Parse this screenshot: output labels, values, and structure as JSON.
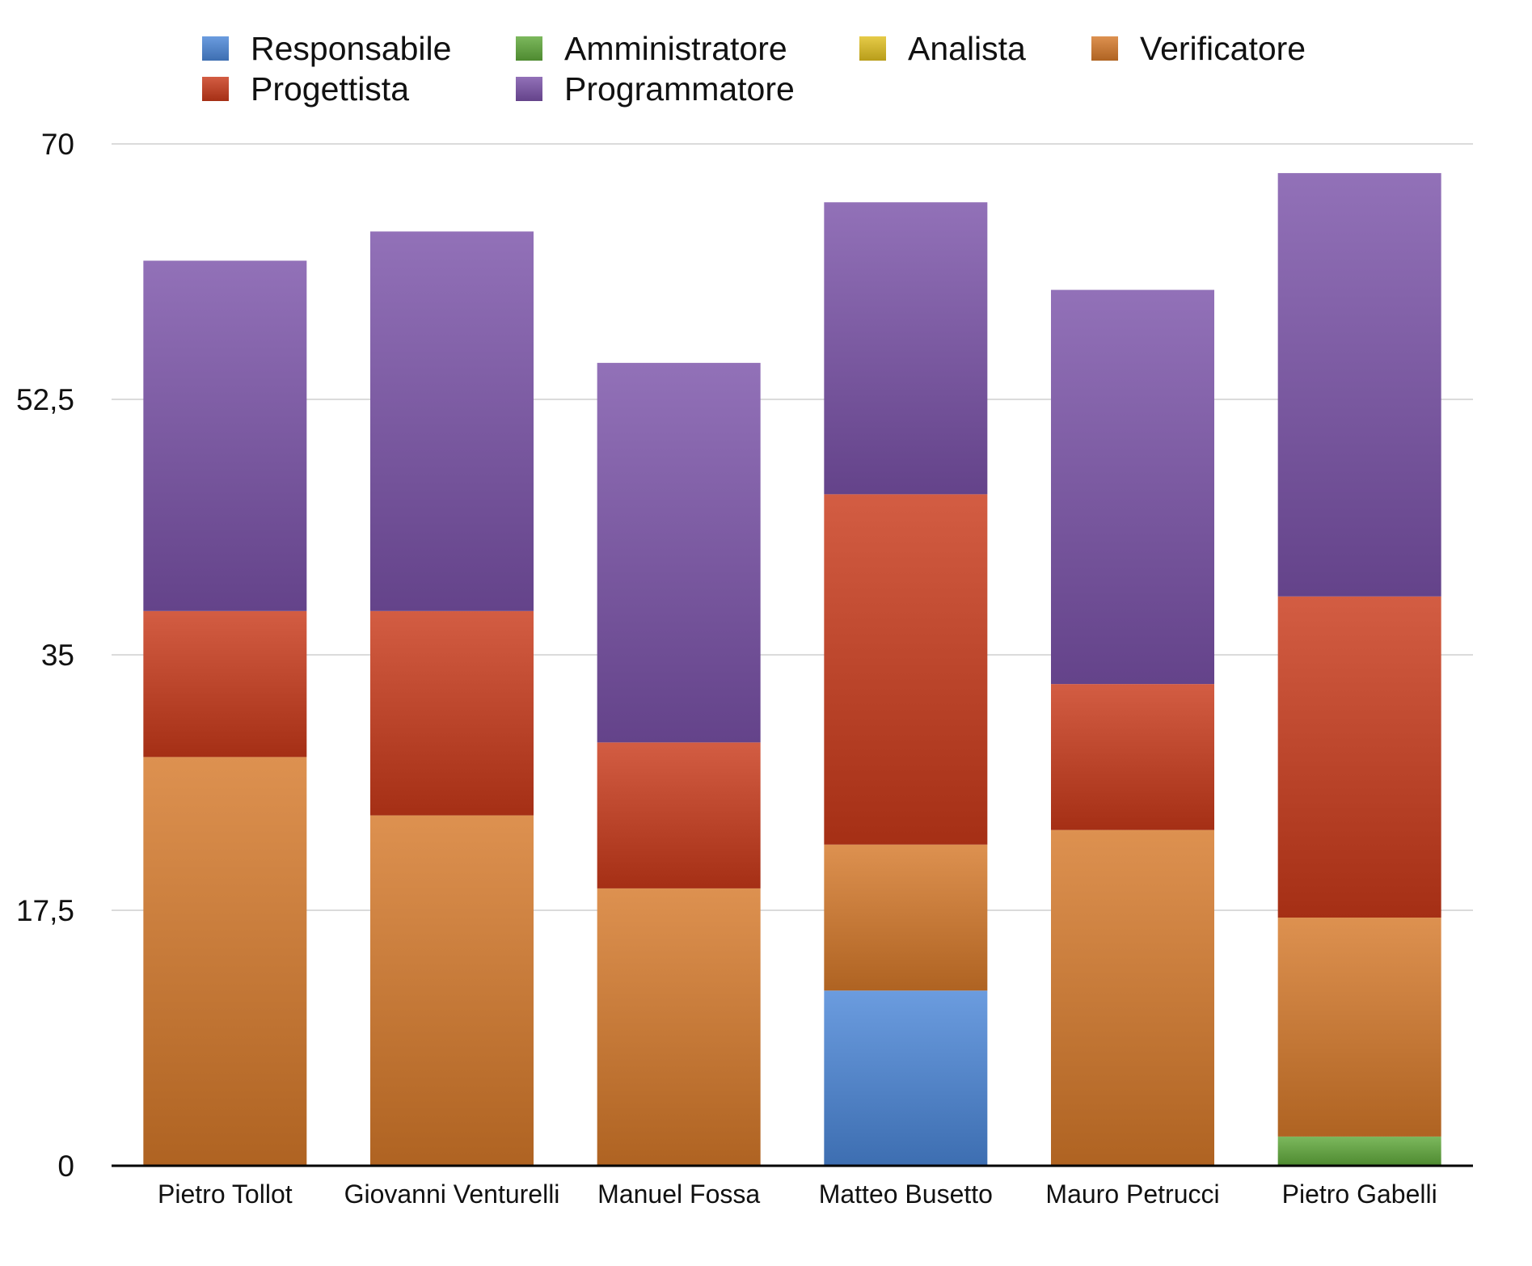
{
  "chart_data": {
    "type": "bar",
    "stacked": true,
    "title": "",
    "xlabel": "",
    "ylabel": "",
    "ylim": [
      0,
      70
    ],
    "yticks": [
      0,
      17.5,
      35,
      52.5,
      70
    ],
    "ytick_labels": [
      "0",
      "17,5",
      "35",
      "52,5",
      "70"
    ],
    "grid": true,
    "legend_position": "top",
    "categories": [
      "Pietro Tollot",
      "Giovanni Venturelli",
      "Manuel Fossa",
      "Matteo Busetto",
      "Mauro Petrucci",
      "Pietro Gabelli"
    ],
    "series": [
      {
        "name": "Responsabile",
        "color": "#4a86d8",
        "values": [
          0,
          0,
          0,
          12,
          0,
          0
        ]
      },
      {
        "name": "Amministratore",
        "color": "#5fa83a",
        "values": [
          0,
          0,
          0,
          0,
          0,
          2
        ]
      },
      {
        "name": "Analista",
        "color": "#e0c020",
        "values": [
          0,
          0,
          0,
          0,
          0,
          0
        ]
      },
      {
        "name": "Verificatore",
        "color": "#d5792a",
        "values": [
          28,
          24,
          19,
          10,
          23,
          15
        ]
      },
      {
        "name": "Progettista",
        "color": "#c9391a",
        "values": [
          10,
          14,
          10,
          24,
          10,
          22
        ]
      },
      {
        "name": "Programmatore",
        "color": "#7a52a8",
        "values": [
          24,
          26,
          26,
          20,
          27,
          29
        ]
      }
    ]
  }
}
